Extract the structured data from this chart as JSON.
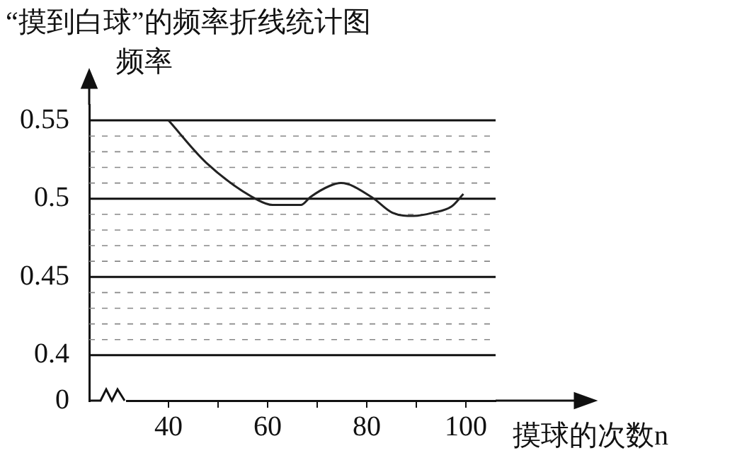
{
  "chart_data": {
    "type": "line",
    "title": "“摸到白球”的频率折线统计图",
    "xlabel": "摸球的次数n",
    "ylabel": "频率",
    "x": [
      40,
      47.6,
      58.1,
      61,
      66.7,
      68.6,
      72.4,
      74.8,
      81,
      85.2,
      89.5,
      93.3,
      97.1,
      99.5
    ],
    "series": [
      {
        "color": "#222222",
        "values": [
          0.55,
          0.523,
          0.499,
          0.496,
          0.496,
          0.501,
          0.508,
          0.51,
          0.501,
          0.491,
          0.489,
          0.491,
          0.495,
          0.503
        ]
      }
    ],
    "xlim": [
      24,
      106
    ],
    "xticks": [
      40,
      {
        "value": 50,
        "label": null
      },
      60,
      {
        "value": 70,
        "label": null
      },
      80,
      {
        "value": 90,
        "label": null
      },
      100
    ],
    "ylim": [
      0.371,
      0.56
    ],
    "yticks": [
      {
        "value": 0.371,
        "label": "0"
      },
      0.4,
      {
        "value": 0.41,
        "label": null
      },
      {
        "value": 0.42,
        "label": null
      },
      {
        "value": 0.43,
        "label": null
      },
      {
        "value": 0.44,
        "label": null
      },
      0.45,
      {
        "value": 0.46,
        "label": null
      },
      {
        "value": 0.47,
        "label": null
      },
      {
        "value": 0.48,
        "label": null
      },
      {
        "value": 0.49,
        "label": null
      },
      0.5,
      {
        "value": 0.51,
        "label": null
      },
      {
        "value": 0.52,
        "label": null
      },
      {
        "value": 0.53,
        "label": null
      },
      {
        "value": 0.54,
        "label": null
      },
      0.55
    ],
    "grid": "y",
    "legend": false,
    "marker": "none",
    "line_style": "solid"
  }
}
